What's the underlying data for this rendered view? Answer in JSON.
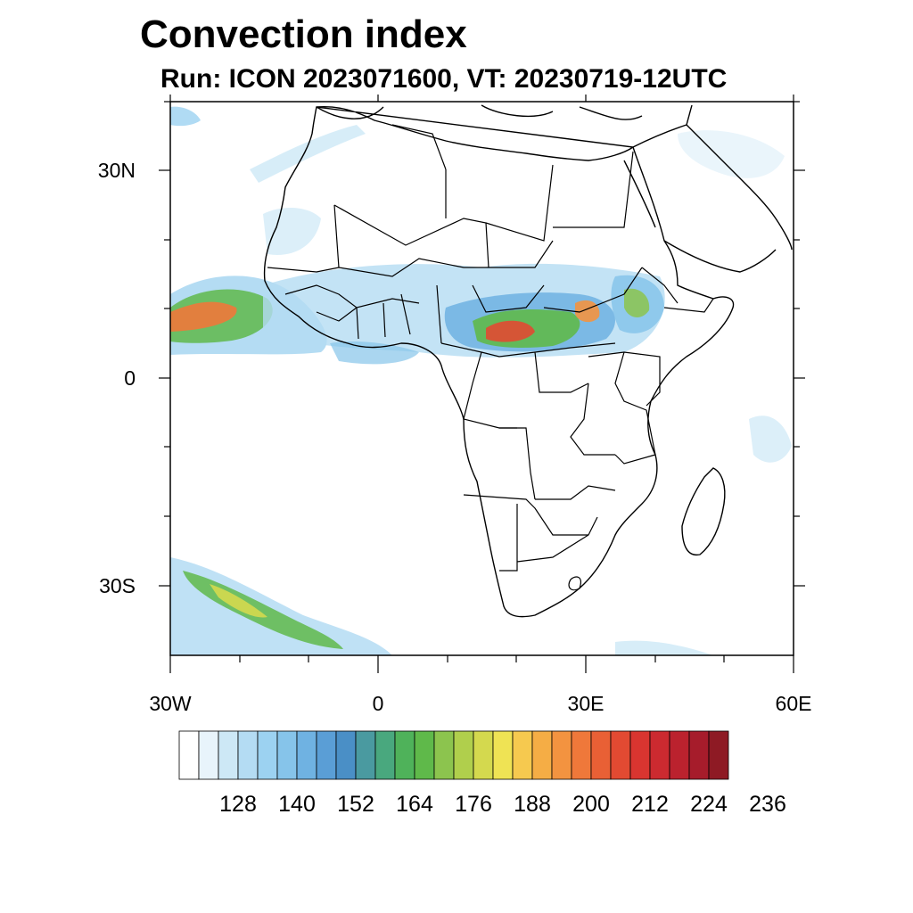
{
  "title": "Convection index",
  "subtitle": "Run: ICON 2023071600,  VT: 20230719-12UTC",
  "map": {
    "projection": "cylindrical equidistant",
    "lon_range": [
      -30,
      60
    ],
    "lat_range": [
      -40,
      40
    ],
    "y_tick_labels": [
      "30N",
      "0",
      "30S"
    ],
    "x_tick_labels": [
      "30W",
      "0",
      "30E",
      "60E"
    ]
  },
  "colorbar": {
    "labels": [
      "128",
      "140",
      "152",
      "164",
      "176",
      "188",
      "200",
      "212",
      "224",
      "236"
    ],
    "colors": [
      "#ffffff",
      "#e8f4fb",
      "#cde8f6",
      "#b4dcf3",
      "#9cd2f1",
      "#86c4ea",
      "#6fb2e2",
      "#5a9ed6",
      "#4a8fc6",
      "#4a9aa0",
      "#49a87e",
      "#4fb25a",
      "#5fb94a",
      "#8cc44e",
      "#b0cf4c",
      "#d4d94e",
      "#efe354",
      "#f6c94f",
      "#f5ad45",
      "#f39340",
      "#ef783a",
      "#e96035",
      "#e24a32",
      "#d93530",
      "#cc2a30",
      "#bb222e",
      "#a61c2b",
      "#8e1a24"
    ]
  }
}
